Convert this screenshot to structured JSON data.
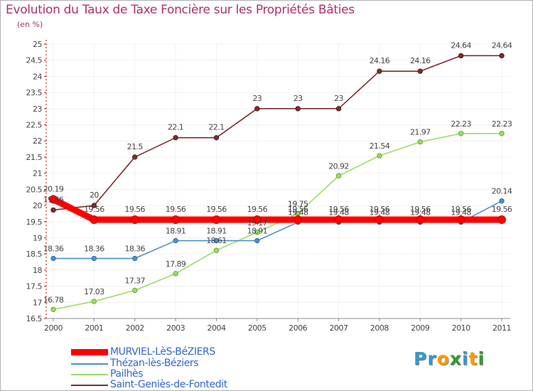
{
  "chart_data": {
    "type": "line",
    "title": "Evolution du Taux de Taxe Foncière sur les Propriétés Bâties",
    "ylabel": "(en %)",
    "xlabel": "",
    "x": [
      "2000",
      "2001",
      "2002",
      "2003",
      "2004",
      "2005",
      "2006",
      "2007",
      "2008",
      "2009",
      "2010",
      "2011"
    ],
    "ylim": [
      16.5,
      25
    ],
    "yticks": [
      "16.5",
      "17",
      "17.5",
      "18",
      "18.5",
      "19",
      "19.5",
      "20",
      "20.5",
      "21",
      "21.5",
      "22",
      "22.5",
      "23",
      "23.5",
      "24",
      "24.5",
      "25"
    ],
    "series": [
      {
        "name": "MURVIEL-LèS-BéZIERS",
        "color": "#ff0000",
        "values": [
          20.19,
          19.56,
          19.56,
          19.56,
          19.56,
          19.56,
          19.56,
          19.56,
          19.56,
          19.56,
          19.56,
          19.56
        ],
        "labels": [
          "20.19",
          "19.56",
          "19.56",
          "19.56",
          "19.56",
          "19.56",
          "19.56",
          "19.56",
          "19.56",
          "19.56",
          "19.56",
          "19.56"
        ]
      },
      {
        "name": "Thézan-lès-Béziers",
        "color": "#4b8fd0",
        "values": [
          18.36,
          18.36,
          18.36,
          18.91,
          18.91,
          18.91,
          19.48,
          19.48,
          19.48,
          19.48,
          19.48,
          20.14
        ],
        "labels": [
          "18.36",
          "18.36",
          "18.36",
          "18.91",
          "18.91",
          "18.91",
          "19.48",
          "19.48",
          "19.48",
          "19.48",
          "19.48",
          "20.14"
        ]
      },
      {
        "name": "Pailhès",
        "color": "#99dd66",
        "values": [
          16.78,
          17.03,
          17.37,
          17.89,
          18.61,
          19.17,
          19.75,
          20.92,
          21.54,
          21.97,
          22.23,
          22.23
        ],
        "labels": [
          "16.78",
          "17.03",
          "17.37",
          "17.89",
          "18.61",
          "19.17",
          "19.75",
          "20.92",
          "21.54",
          "21.97",
          "22.23",
          "22.23"
        ]
      },
      {
        "name": "Saint-Geniès-de-Fontedit",
        "color": "#7a2e2e",
        "values": [
          19.86,
          20,
          21.5,
          22.1,
          22.1,
          23,
          23,
          23,
          24.16,
          24.16,
          24.64,
          24.64
        ],
        "labels": [
          "19.86",
          "20",
          "21.5",
          "22.1",
          "22.1",
          "23",
          "23",
          "23",
          "24.16",
          "24.16",
          "24.64",
          "24.64"
        ]
      }
    ],
    "legend_position": "bottom-left"
  },
  "logo": {
    "letters": [
      "P",
      "r",
      "o",
      "x",
      "i",
      "t",
      "i"
    ],
    "colors": [
      "#3399cc",
      "#3399cc",
      "#ff9900",
      "#339933",
      "#3399cc",
      "#ff9900",
      "#339933"
    ]
  }
}
